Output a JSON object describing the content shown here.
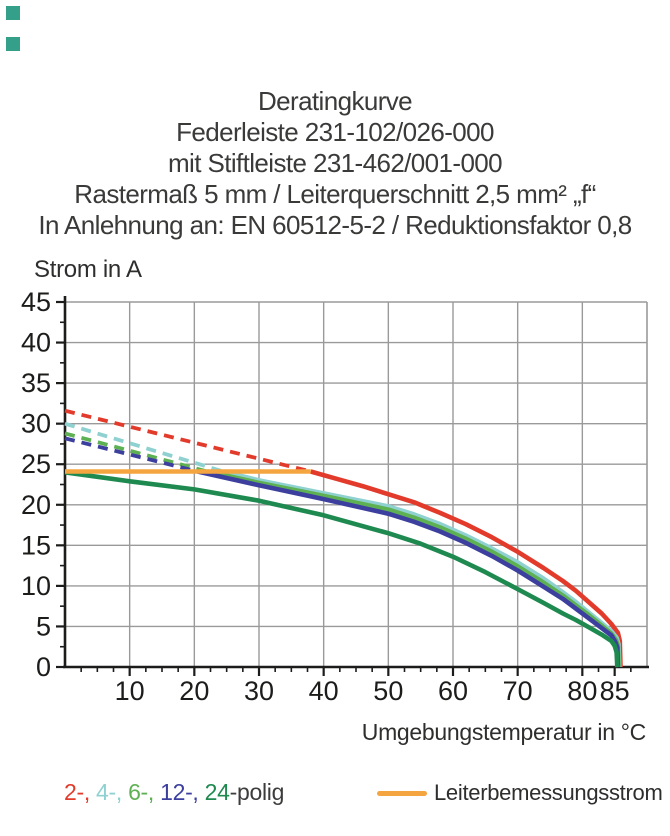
{
  "header": {
    "lines": [
      "Deratingkurve",
      "Federleiste 231-102/026-000",
      "mit Stiftleiste 231-462/001-000",
      "Rastermaß 5 mm / Leiterquerschnitt 2,5 mm² „f“",
      "In Anlehnung an: EN 60512-5-2 / Reduktionsfaktor 0,8"
    ]
  },
  "chart_data": {
    "type": "line",
    "title": "Deratingkurve",
    "xlabel": "Umgebungstemperatur in °C",
    "ylabel": "Strom in A",
    "xlim": [
      0,
      90
    ],
    "ylim": [
      0,
      45
    ],
    "x_major_ticks": [
      10,
      20,
      30,
      40,
      50,
      60,
      70,
      80,
      85
    ],
    "x_minor_step": 2.5,
    "y_major_ticks": [
      0,
      5,
      10,
      15,
      20,
      25,
      30,
      35,
      40,
      45
    ],
    "y_minor_step": 2.5,
    "grid": {
      "vertical_at": [
        10,
        20,
        30,
        40,
        50,
        60,
        70,
        80
      ],
      "horizontal_at": [
        5,
        10,
        15,
        20,
        25,
        30,
        35,
        40
      ],
      "color": "#9a9a9a"
    },
    "legend_position": "bottom",
    "series": [
      {
        "name": "2-polig",
        "color": "#e23b2c",
        "dashed": [
          [
            0,
            31.6
          ],
          [
            38,
            24.1
          ]
        ],
        "solid": [
          [
            38,
            24.1
          ],
          [
            42,
            23.2
          ],
          [
            46,
            22.3
          ],
          [
            50,
            21.3
          ],
          [
            54,
            20.3
          ],
          [
            58,
            19.0
          ],
          [
            62,
            17.6
          ],
          [
            66,
            16.0
          ],
          [
            70,
            14.2
          ],
          [
            74,
            12.2
          ],
          [
            77,
            10.6
          ],
          [
            79,
            9.4
          ],
          [
            81,
            8.0
          ],
          [
            83,
            6.6
          ],
          [
            84.5,
            5.3
          ],
          [
            85.5,
            4.2
          ],
          [
            85.8,
            3.2
          ],
          [
            85.9,
            0
          ]
        ]
      },
      {
        "name": "4-polig",
        "color": "#8ed1d0",
        "dashed": [
          [
            0,
            30.0
          ],
          [
            24.5,
            24.1
          ]
        ],
        "solid": [
          [
            24.5,
            24.1
          ],
          [
            30,
            23.0
          ],
          [
            35,
            22.2
          ],
          [
            40,
            21.4
          ],
          [
            45,
            20.6
          ],
          [
            50,
            19.8
          ],
          [
            54,
            18.8
          ],
          [
            58,
            17.6
          ],
          [
            62,
            16.2
          ],
          [
            66,
            14.6
          ],
          [
            70,
            12.9
          ],
          [
            74,
            10.9
          ],
          [
            77,
            9.2
          ],
          [
            79,
            8.0
          ],
          [
            81,
            6.7
          ],
          [
            83,
            5.4
          ],
          [
            84.5,
            4.4
          ],
          [
            85.3,
            3.6
          ],
          [
            85.6,
            2.8
          ],
          [
            85.7,
            0
          ]
        ]
      },
      {
        "name": "6-polig",
        "color": "#5eb152",
        "dashed": [
          [
            0,
            28.8
          ],
          [
            22,
            24.1
          ]
        ],
        "solid": [
          [
            22,
            24.1
          ],
          [
            30,
            22.7
          ],
          [
            40,
            21.1
          ],
          [
            50,
            19.4
          ],
          [
            54,
            18.4
          ],
          [
            58,
            17.2
          ],
          [
            62,
            15.8
          ],
          [
            66,
            14.2
          ],
          [
            70,
            12.4
          ],
          [
            74,
            10.4
          ],
          [
            77,
            8.8
          ],
          [
            79,
            7.6
          ],
          [
            81,
            6.4
          ],
          [
            83,
            5.1
          ],
          [
            84.5,
            4.1
          ],
          [
            85.2,
            3.3
          ],
          [
            85.5,
            2.6
          ],
          [
            85.6,
            0
          ]
        ]
      },
      {
        "name": "12-polig",
        "color": "#3c3f9e",
        "dashed": [
          [
            0,
            28.2
          ],
          [
            20.5,
            24.1
          ]
        ],
        "solid": [
          [
            20.5,
            24.1
          ],
          [
            30,
            22.4
          ],
          [
            40,
            20.7
          ],
          [
            50,
            18.9
          ],
          [
            54,
            17.9
          ],
          [
            58,
            16.7
          ],
          [
            62,
            15.3
          ],
          [
            66,
            13.7
          ],
          [
            70,
            11.9
          ],
          [
            74,
            9.9
          ],
          [
            77,
            8.4
          ],
          [
            79,
            7.2
          ],
          [
            81,
            6.0
          ],
          [
            83,
            4.8
          ],
          [
            84.5,
            3.9
          ],
          [
            85.1,
            3.1
          ],
          [
            85.4,
            2.4
          ],
          [
            85.5,
            0
          ]
        ]
      },
      {
        "name": "24-polig",
        "color": "#1f8a50",
        "solid": [
          [
            0,
            24.0
          ],
          [
            10,
            22.9
          ],
          [
            20,
            21.9
          ],
          [
            30,
            20.5
          ],
          [
            40,
            18.7
          ],
          [
            50,
            16.5
          ],
          [
            55,
            15.2
          ],
          [
            60,
            13.6
          ],
          [
            65,
            11.7
          ],
          [
            70,
            9.6
          ],
          [
            74,
            7.9
          ],
          [
            77,
            6.6
          ],
          [
            79,
            5.8
          ],
          [
            81,
            4.9
          ],
          [
            83,
            4.0
          ],
          [
            84.5,
            3.2
          ],
          [
            85,
            2.6
          ],
          [
            85.3,
            1.8
          ],
          [
            85.4,
            0
          ]
        ]
      },
      {
        "name": "Leiterbemessungsstrom",
        "color": "#f5a53f",
        "solid": [
          [
            0,
            24.1
          ],
          [
            38,
            24.1
          ]
        ]
      }
    ]
  },
  "legend": {
    "poles_parts": [
      {
        "text": "2-, ",
        "color": "#e23b2c"
      },
      {
        "text": "4-, ",
        "color": "#8ed1d0"
      },
      {
        "text": "6-, ",
        "color": "#5eb152"
      },
      {
        "text": "12-, ",
        "color": "#3c3f9e"
      },
      {
        "text": "24",
        "color": "#1f8a50"
      },
      {
        "text": "-polig",
        "color": "#3c3c3b"
      }
    ],
    "rated_label": "Leiterbemessungsstrom",
    "rated_color": "#f5a53f"
  },
  "decor": {
    "corner_color": "#35a089"
  }
}
